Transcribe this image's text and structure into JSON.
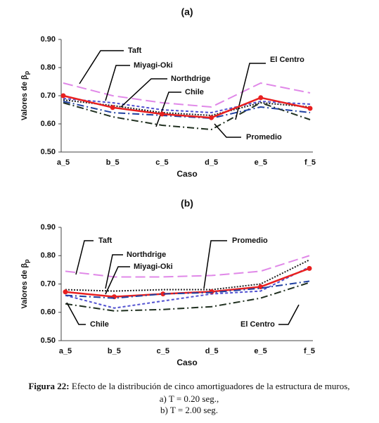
{
  "chart_data": [
    {
      "type": "line",
      "title": "(a)",
      "xlabel": "Caso",
      "ylabel": "Valores de β",
      "ylabel_subscript": "p",
      "categories": [
        "a_5",
        "b_5",
        "c_5",
        "d_5",
        "e_5",
        "f_5"
      ],
      "ylim": [
        0.5,
        0.9
      ],
      "yticks": [
        {
          "value": 0.5,
          "label": "0.50"
        },
        {
          "value": 0.6,
          "label": "0.60"
        },
        {
          "value": 0.7,
          "label": "0.70"
        },
        {
          "value": 0.8,
          "label": "0.80"
        },
        {
          "value": 0.9,
          "label": "0.90"
        }
      ],
      "series": [
        {
          "name": "Taft",
          "color": "#e088e8",
          "dash": "14,6",
          "values": [
            0.745,
            0.7,
            0.675,
            0.66,
            0.745,
            0.71
          ]
        },
        {
          "name": "Miyagi-Oki",
          "color": "#5050d0",
          "dash": "4,3",
          "values": [
            0.69,
            0.675,
            0.65,
            0.64,
            0.68,
            0.67
          ]
        },
        {
          "name": "Northdrige",
          "color": "#222222",
          "dash": "2,2",
          "values": [
            0.685,
            0.665,
            0.64,
            0.63,
            0.675,
            0.66
          ]
        },
        {
          "name": "Chile",
          "color": "#203020",
          "dash": "10,4,2,4",
          "values": [
            0.675,
            0.625,
            0.595,
            0.58,
            0.675,
            0.615
          ]
        },
        {
          "name": "El Centro",
          "color": "#2040a0",
          "dash": "10,4,2,4",
          "values": [
            0.68,
            0.64,
            0.63,
            0.62,
            0.66,
            0.64
          ]
        },
        {
          "name": "Promedio",
          "color": "#e82020",
          "dash": "",
          "markers": true,
          "values": [
            0.7,
            0.658,
            0.635,
            0.622,
            0.693,
            0.655
          ]
        }
      ]
    },
    {
      "type": "line",
      "title": "(b)",
      "xlabel": "Caso",
      "ylabel": "Valores de β",
      "ylabel_subscript": "p",
      "categories": [
        "a_5",
        "b_5",
        "c_5",
        "d_5",
        "e_5",
        "f_5"
      ],
      "ylim": [
        0.5,
        0.9
      ],
      "yticks": [
        {
          "value": 0.5,
          "label": "0.50"
        },
        {
          "value": 0.6,
          "label": "0.60"
        },
        {
          "value": 0.7,
          "label": "0.70"
        },
        {
          "value": 0.8,
          "label": "0.80"
        },
        {
          "value": 0.9,
          "label": "0.90"
        }
      ],
      "series": [
        {
          "name": "Taft",
          "color": "#e088e8",
          "dash": "14,6",
          "values": [
            0.745,
            0.725,
            0.725,
            0.73,
            0.745,
            0.8
          ]
        },
        {
          "name": "Northdrige",
          "color": "#222222",
          "dash": "2,2",
          "values": [
            0.68,
            0.675,
            0.68,
            0.68,
            0.7,
            0.785
          ]
        },
        {
          "name": "Miyagi-Oki",
          "color": "#5050d0",
          "dash": "4,3",
          "values": [
            0.66,
            0.615,
            0.64,
            0.665,
            0.675,
            0.76
          ]
        },
        {
          "name": "Promedio",
          "color": "#e82020",
          "dash": "",
          "markers": true,
          "values": [
            0.672,
            0.655,
            0.665,
            0.673,
            0.69,
            0.755
          ]
        },
        {
          "name": "Chile",
          "color": "#203020",
          "dash": "10,4,2,4",
          "values": [
            0.63,
            0.605,
            0.61,
            0.62,
            0.65,
            0.705
          ]
        },
        {
          "name": "El Centro",
          "color": "#2040a0",
          "dash": "10,4,2,4",
          "values": [
            0.66,
            0.65,
            0.665,
            0.67,
            0.685,
            0.71
          ]
        }
      ]
    }
  ],
  "caption": {
    "label": "Figura 22:",
    "text": "Efecto de la distribución de cinco amortiguadores de la estructura de muros,",
    "line2": "a) T = 0.20 seg.,",
    "line3": "b) T = 2.00 seg."
  }
}
